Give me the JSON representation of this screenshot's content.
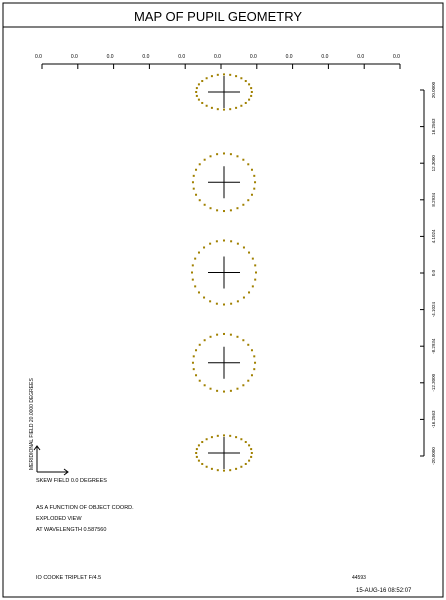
{
  "title": "MAP OF PUPIL GEOMETRY",
  "top_scale_labels": [
    "0.0",
    "0.0",
    "0.0",
    "0.0",
    "0.0",
    "0.0",
    "0.0",
    "0.0",
    "0.0",
    "0.0",
    "0.0"
  ],
  "right_scale_labels": [
    "20.0000",
    "16.2563",
    "12.3000",
    "8.2934",
    "4.1024",
    "0.0",
    "-4.1024",
    "-8.2934",
    "-12.3000",
    "-16.2563",
    "-20.0000"
  ],
  "axis_labels": {
    "meridional": "MERIDIONAL FIELD  20.0000 DEGREES",
    "skew": "SKEW FIELD  0.0 DEGREES"
  },
  "notes": [
    "AS A FUNCTION OF OBJECT COORD.",
    "EXPLODED VIEW",
    "AT WAVELENGTH  0.587560"
  ],
  "footer": {
    "lens_name": "IO COOKE TRIPLET F/4.5",
    "id": "44593",
    "datetime": "15-AUG-16  08:52:07"
  },
  "colors": {
    "dots": "#a08000",
    "lines": "#000000"
  },
  "pupils": [
    {
      "field": 20.0,
      "rx": 0.87,
      "ry": 0.55
    },
    {
      "field": 10.0,
      "rx": 0.97,
      "ry": 0.9
    },
    {
      "field": 0.0,
      "rx": 1.0,
      "ry": 1.0
    },
    {
      "field": -10.0,
      "rx": 0.97,
      "ry": 0.9
    },
    {
      "field": -20.0,
      "rx": 0.87,
      "ry": 0.55
    }
  ]
}
